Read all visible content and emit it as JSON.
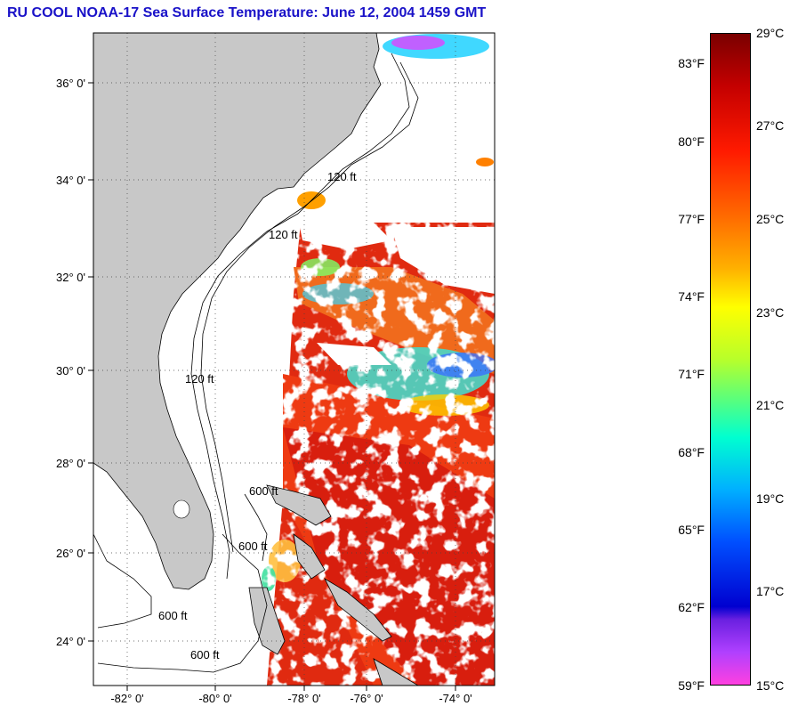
{
  "title": "RU COOL  NOAA-17  Sea Surface Temperature:  June 12, 2004 1459 GMT",
  "map": {
    "lat_labels": [
      "36° 0'",
      "34° 0'",
      "32° 0'",
      "30° 0'",
      "28° 0'",
      "26° 0'",
      "24° 0'"
    ],
    "lon_labels": [
      "-82° 0'",
      "-80° 0'",
      "-78° 0'",
      "-76° 0'",
      "-74° 0'"
    ],
    "contour_labels": [
      "120 ft",
      "120 ft",
      "120 ft",
      "600 ft",
      "600 ft",
      "600 ft",
      "600 ft"
    ]
  },
  "colorbar": {
    "celsius": [
      "29°C",
      "27°C",
      "25°C",
      "23°C",
      "21°C",
      "19°C",
      "17°C",
      "15°C"
    ],
    "fahrenheit": [
      "83°F",
      "80°F",
      "77°F",
      "74°F",
      "71°F",
      "68°F",
      "65°F",
      "62°F",
      "59°F"
    ],
    "colors": [
      "#7a0000",
      "#ff1a00",
      "#ffb000",
      "#ffff00",
      "#5cff7a",
      "#00ffd0",
      "#0050ff",
      "#0000d0",
      "#ff40e0"
    ]
  }
}
